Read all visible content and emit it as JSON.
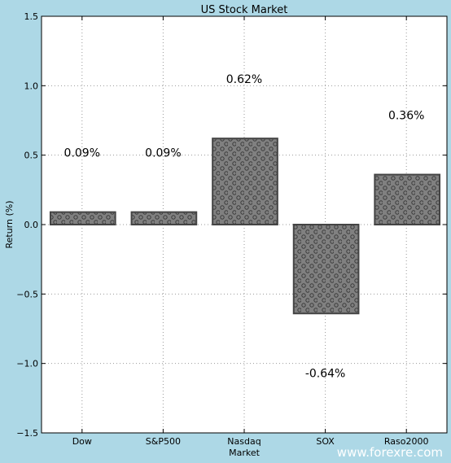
{
  "chart_data": {
    "type": "bar",
    "title": "US Stock Market",
    "xlabel": "Market",
    "ylabel": "Return (%)",
    "categories": [
      "Dow",
      "S&P500",
      "Nasdaq",
      "SOX",
      "Raso2000"
    ],
    "values": [
      0.09,
      0.09,
      0.62,
      -0.64,
      0.36
    ],
    "data_labels": [
      "0.09%",
      "0.09%",
      "0.62%",
      "-0.64%",
      "0.36%"
    ],
    "ylim": [
      -1.5,
      1.5
    ],
    "yticks": [
      -1.5,
      -1.0,
      -0.5,
      0.0,
      0.5,
      1.0,
      1.5
    ],
    "ytick_labels": [
      "−1.5",
      "−1.0",
      "−0.5",
      "0.0",
      "0.5",
      "1.0",
      "1.5"
    ],
    "grid": true,
    "bar_color": "#808080",
    "bar_pattern": "dotted-circles",
    "background_color": "#add8e6",
    "plot_background": "#ffffff"
  },
  "watermark": "www.forexre.com"
}
